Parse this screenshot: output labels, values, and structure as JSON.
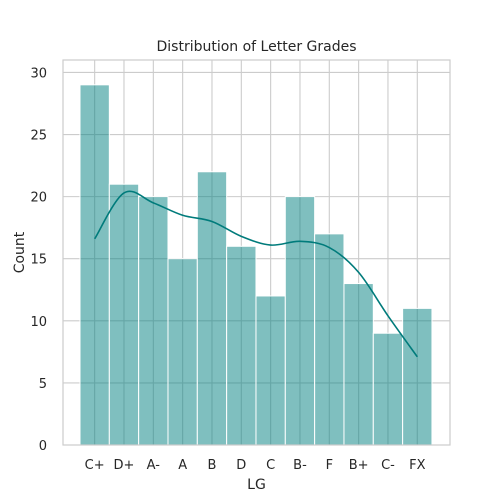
{
  "chart_data": {
    "type": "bar",
    "title": "Distribution of Letter Grades",
    "xlabel": "LG",
    "ylabel": "Count",
    "categories": [
      "C+",
      "D+",
      "A-",
      "A",
      "B",
      "D",
      "C",
      "B-",
      "F",
      "B+",
      "C-",
      "FX"
    ],
    "values": [
      29,
      21,
      20,
      15,
      22,
      16,
      12,
      20,
      17,
      13,
      9,
      11
    ],
    "ylim": [
      0,
      31
    ],
    "yticks": [
      0,
      5,
      10,
      15,
      20,
      25,
      30
    ],
    "grid": true,
    "bar_color": "#008080",
    "kde_line": {
      "color": "#007b7b",
      "points": [
        [
          "C+",
          16.6
        ],
        [
          "D+",
          20.3
        ],
        [
          "A-",
          19.5
        ],
        [
          "A",
          18.5
        ],
        [
          "B",
          18.0
        ],
        [
          "D",
          16.8
        ],
        [
          "C",
          16.1
        ],
        [
          "B-",
          16.4
        ],
        [
          "F",
          15.9
        ],
        [
          "B+",
          13.9
        ],
        [
          "C-",
          10.4
        ],
        [
          "FX",
          7.1
        ]
      ]
    }
  }
}
